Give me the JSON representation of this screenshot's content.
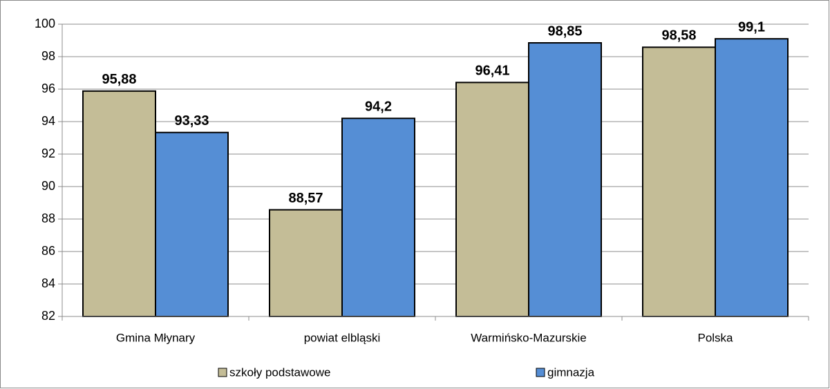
{
  "chart_data": {
    "type": "bar",
    "categories": [
      "Gmina Młynary",
      "powiat elbląski",
      "Warmińsko-Mazurskie",
      "Polska"
    ],
    "series": [
      {
        "name": "szkoły podstawowe",
        "color": "#c4bd97",
        "values": [
          95.88,
          88.57,
          96.41,
          98.58
        ],
        "value_labels": [
          "95,88",
          "88,57",
          "96,41",
          "98,58"
        ]
      },
      {
        "name": "gimnazja",
        "color": "#558ed5",
        "values": [
          93.33,
          94.2,
          98.85,
          99.1
        ],
        "value_labels": [
          "93,33",
          "94,2",
          "98,85",
          "99,1"
        ]
      }
    ],
    "ylim": [
      82,
      100
    ],
    "yticks": [
      82,
      84,
      86,
      88,
      90,
      92,
      94,
      96,
      98,
      100
    ],
    "grid": true,
    "legend": "bottom"
  }
}
